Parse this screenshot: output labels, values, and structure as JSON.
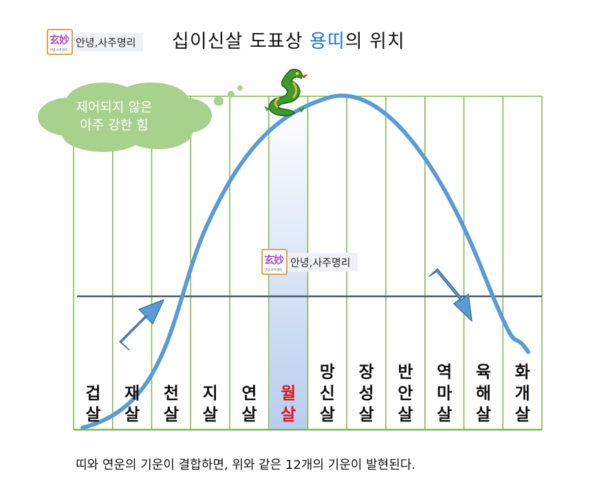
{
  "logo": {
    "badge_line1": "玄妙",
    "badge_line2": "안녕,사주명리",
    "text": "안녕,사주명리"
  },
  "title": {
    "before": "십이신살 도표상 ",
    "highlight": "용띠",
    "after": "의 위치"
  },
  "cloud": {
    "line1": "제어되지 않은",
    "line2": "아주 강한 힘"
  },
  "watermark": {
    "badge_line1": "玄妙",
    "badge_line2": "안녕,사주명리",
    "text": "안녕,사주명리"
  },
  "columns": [
    {
      "label": "겁살"
    },
    {
      "label": "재살"
    },
    {
      "label": "천살"
    },
    {
      "label": "지살"
    },
    {
      "label": "연살"
    },
    {
      "label": "월살",
      "highlight": true
    },
    {
      "label": "망신살"
    },
    {
      "label": "장성살"
    },
    {
      "label": "반안살"
    },
    {
      "label": "역마살"
    },
    {
      "label": "육해살"
    },
    {
      "label": "화개살"
    }
  ],
  "footer": "띠와 연운의 기운이 결합하면, 위와 같은 12개의 기운이 발현된다.",
  "colors": {
    "grid": "#7ab648",
    "curve": "#5b9bd5",
    "arrow": "#5b9bd5",
    "baseline": "#44546a",
    "cloud": "#a9d18e",
    "highlight_band": "#c7daf5",
    "title_highlight": "#1f77c9",
    "red_label": "#e8121c"
  },
  "icons": {
    "dragon": "dragon-icon",
    "logo": "logo-icon"
  }
}
